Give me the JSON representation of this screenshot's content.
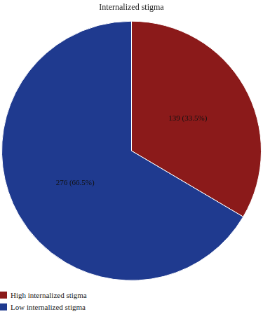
{
  "chart_data": {
    "type": "pie",
    "title": "Internalized stigma",
    "categories": [
      "High internalized stigma",
      "Low internalized stigma"
    ],
    "values": [
      139,
      276
    ],
    "value_labels": [
      "139 (33.5%)",
      "276 (66.5%)"
    ],
    "colors": [
      "#8b1a1a",
      "#1f3a8f"
    ],
    "data_labels": true,
    "legend": "bottom-left"
  }
}
